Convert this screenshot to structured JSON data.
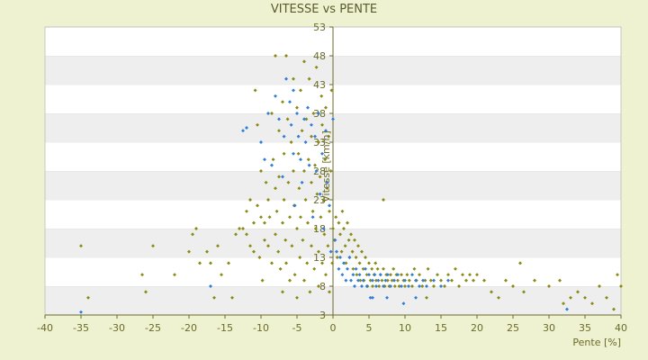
{
  "chart_data": {
    "type": "scatter",
    "title": "VITESSE vs PENTE",
    "xlabel": "Pente [%]",
    "ylabel": "Vitesse [km/h]",
    "xlim": [
      -40,
      40
    ],
    "ylim": [
      3,
      53
    ],
    "x_ticks": [
      -40,
      -35,
      -30,
      -25,
      -20,
      -15,
      -10,
      -5,
      0,
      5,
      10,
      15,
      20,
      25,
      30,
      35,
      40
    ],
    "y_ticks": [
      3,
      8,
      13,
      18,
      23,
      28,
      33,
      38,
      43,
      48,
      53
    ],
    "grid": "horizontal bands",
    "colors": {
      "background": "#eef2d0",
      "plot_band_light": "#ffffff",
      "plot_band_dark": "#eeeeee",
      "axis": "#6b6b2a",
      "series_a": "#8a8a14",
      "series_b": "#2e7dd6"
    },
    "series": [
      {
        "color": "#8a8a14",
        "points": [
          [
            -35,
            15
          ],
          [
            -34,
            6
          ],
          [
            -26.5,
            10
          ],
          [
            -26,
            7
          ],
          [
            -25,
            15
          ],
          [
            -22,
            10
          ],
          [
            -20,
            14
          ],
          [
            -19.5,
            17
          ],
          [
            -19,
            18
          ],
          [
            -18.5,
            12
          ],
          [
            -17.5,
            14
          ],
          [
            -17,
            12
          ],
          [
            -16.5,
            6
          ],
          [
            -16,
            15
          ],
          [
            -15.5,
            10
          ],
          [
            -14.5,
            12
          ],
          [
            -14,
            6
          ],
          [
            -13.5,
            17
          ],
          [
            -13,
            18
          ],
          [
            -12.5,
            18
          ],
          [
            -12,
            21
          ],
          [
            -12,
            17
          ],
          [
            -11.5,
            23
          ],
          [
            -11.5,
            15
          ],
          [
            -11,
            19
          ],
          [
            -11,
            14
          ],
          [
            -10.8,
            42
          ],
          [
            -10.5,
            36
          ],
          [
            -10.5,
            22
          ],
          [
            -10.2,
            13
          ],
          [
            -10,
            28
          ],
          [
            -10,
            20
          ],
          [
            -9.8,
            9
          ],
          [
            -9.5,
            19
          ],
          [
            -9.5,
            16
          ],
          [
            -9.3,
            26
          ],
          [
            -9,
            23
          ],
          [
            -9,
            15
          ],
          [
            -8.8,
            20
          ],
          [
            -8.5,
            12
          ],
          [
            -8.5,
            38
          ],
          [
            -8.3,
            30
          ],
          [
            -8,
            25
          ],
          [
            -8,
            17
          ],
          [
            -8,
            48
          ],
          [
            -7.8,
            21
          ],
          [
            -7.6,
            14
          ],
          [
            -7.5,
            35
          ],
          [
            -7.5,
            27
          ],
          [
            -7.3,
            11
          ],
          [
            -7,
            40
          ],
          [
            -7,
            19
          ],
          [
            -7,
            7
          ],
          [
            -6.8,
            31
          ],
          [
            -6.8,
            23
          ],
          [
            -6.6,
            16
          ],
          [
            -6.5,
            48
          ],
          [
            -6.5,
            12
          ],
          [
            -6.3,
            37
          ],
          [
            -6.2,
            26
          ],
          [
            -6,
            20
          ],
          [
            -6,
            9
          ],
          [
            -5.8,
            33
          ],
          [
            -5.7,
            15
          ],
          [
            -5.5,
            44
          ],
          [
            -5.5,
            28
          ],
          [
            -5.4,
            22
          ],
          [
            -5.3,
            10
          ],
          [
            -5,
            39
          ],
          [
            -5,
            18
          ],
          [
            -5,
            6
          ],
          [
            -4.8,
            31
          ],
          [
            -4.7,
            25
          ],
          [
            -4.6,
            13
          ],
          [
            -4.5,
            42
          ],
          [
            -4.5,
            20
          ],
          [
            -4.3,
            35
          ],
          [
            -4.2,
            16
          ],
          [
            -4,
            47
          ],
          [
            -4,
            28
          ],
          [
            -4,
            9
          ],
          [
            -3.8,
            23
          ],
          [
            -3.7,
            37
          ],
          [
            -3.6,
            12
          ],
          [
            -3.5,
            19
          ],
          [
            -3.4,
            30
          ],
          [
            -3.3,
            44
          ],
          [
            -3.2,
            7
          ],
          [
            -3,
            34
          ],
          [
            -3,
            26
          ],
          [
            -3,
            15
          ],
          [
            -2.8,
            21
          ],
          [
            -2.7,
            38
          ],
          [
            -2.6,
            11
          ],
          [
            -2.5,
            29
          ],
          [
            -2.4,
            18
          ],
          [
            -2.3,
            46
          ],
          [
            -2.2,
            24
          ],
          [
            -2,
            33
          ],
          [
            -2,
            14
          ],
          [
            -2,
            8
          ],
          [
            -1.8,
            27
          ],
          [
            -1.7,
            20
          ],
          [
            -1.6,
            41
          ],
          [
            -1.5,
            36
          ],
          [
            -1.5,
            12
          ],
          [
            -1.3,
            23
          ],
          [
            -1.2,
            17
          ],
          [
            -1.1,
            30
          ],
          [
            -1,
            39
          ],
          [
            -1,
            10
          ],
          [
            -0.8,
            25
          ],
          [
            -0.7,
            15
          ],
          [
            -0.6,
            34
          ],
          [
            -0.5,
            21
          ],
          [
            -0.5,
            7
          ],
          [
            -0.3,
            28
          ],
          [
            -0.2,
            42
          ],
          [
            -0.1,
            12
          ],
          [
            0,
            18
          ],
          [
            0.2,
            16
          ],
          [
            0.4,
            20
          ],
          [
            0.6,
            13
          ],
          [
            0.8,
            19
          ],
          [
            1,
            17
          ],
          [
            1.2,
            14
          ],
          [
            1.3,
            21
          ],
          [
            1.5,
            18
          ],
          [
            1.7,
            15
          ],
          [
            1.8,
            12
          ],
          [
            2,
            19
          ],
          [
            2.2,
            16
          ],
          [
            2.3,
            13
          ],
          [
            2.5,
            17
          ],
          [
            2.7,
            14
          ],
          [
            2.8,
            11
          ],
          [
            3,
            16
          ],
          [
            3.2,
            13
          ],
          [
            3.3,
            10
          ],
          [
            3.5,
            15
          ],
          [
            3.7,
            12
          ],
          [
            3.8,
            9
          ],
          [
            4,
            14
          ],
          [
            4.2,
            11
          ],
          [
            4.3,
            9
          ],
          [
            4.5,
            13
          ],
          [
            4.7,
            10
          ],
          [
            4.8,
            8
          ],
          [
            5,
            12
          ],
          [
            5.2,
            9
          ],
          [
            5.4,
            11
          ],
          [
            5.5,
            8
          ],
          [
            5.7,
            10
          ],
          [
            5.9,
            12
          ],
          [
            6,
            9
          ],
          [
            6.2,
            11
          ],
          [
            6.4,
            8
          ],
          [
            6.6,
            10
          ],
          [
            6.8,
            9
          ],
          [
            7,
            23
          ],
          [
            7,
            11
          ],
          [
            7.2,
            8
          ],
          [
            7.4,
            10
          ],
          [
            7.6,
            9
          ],
          [
            7.8,
            8
          ],
          [
            8,
            10
          ],
          [
            8.2,
            9
          ],
          [
            8.4,
            11
          ],
          [
            8.6,
            8
          ],
          [
            8.8,
            10
          ],
          [
            9,
            9
          ],
          [
            9.2,
            8
          ],
          [
            9.5,
            10
          ],
          [
            9.8,
            9
          ],
          [
            10,
            8
          ],
          [
            10.3,
            10
          ],
          [
            10.6,
            9
          ],
          [
            11,
            8
          ],
          [
            11.3,
            11
          ],
          [
            11.6,
            9
          ],
          [
            12,
            10
          ],
          [
            12.4,
            8
          ],
          [
            12.8,
            9
          ],
          [
            13,
            6
          ],
          [
            13.2,
            11
          ],
          [
            13.6,
            9
          ],
          [
            14,
            8
          ],
          [
            14.5,
            10
          ],
          [
            15,
            9
          ],
          [
            15.5,
            8
          ],
          [
            16,
            10
          ],
          [
            16.5,
            9
          ],
          [
            17,
            11
          ],
          [
            17.5,
            8
          ],
          [
            18,
            10
          ],
          [
            18.5,
            9
          ],
          [
            19,
            10
          ],
          [
            19.5,
            9
          ],
          [
            20,
            10
          ],
          [
            21,
            9
          ],
          [
            22,
            7
          ],
          [
            23,
            6
          ],
          [
            24,
            9
          ],
          [
            25,
            8
          ],
          [
            26,
            12
          ],
          [
            26.5,
            7
          ],
          [
            28,
            9
          ],
          [
            30,
            8
          ],
          [
            31.5,
            9
          ],
          [
            32,
            5
          ],
          [
            33,
            6
          ],
          [
            34,
            7
          ],
          [
            35,
            6
          ],
          [
            36,
            5
          ],
          [
            37,
            8
          ],
          [
            38,
            6
          ],
          [
            39,
            4
          ],
          [
            39.5,
            10
          ],
          [
            40,
            8
          ]
        ]
      },
      {
        "color": "#2e7dd6",
        "points": [
          [
            -35,
            3.5
          ],
          [
            -17,
            8
          ],
          [
            -12.5,
            35
          ],
          [
            -12,
            35.5
          ],
          [
            -10,
            33
          ],
          [
            -9.5,
            30
          ],
          [
            -9,
            38
          ],
          [
            -8.5,
            29
          ],
          [
            -8,
            41
          ],
          [
            -7.5,
            37
          ],
          [
            -7,
            27
          ],
          [
            -6.8,
            34
          ],
          [
            -6.5,
            44
          ],
          [
            -6,
            40
          ],
          [
            -5.8,
            36
          ],
          [
            -5.5,
            42
          ],
          [
            -5.5,
            31
          ],
          [
            -5.3,
            22
          ],
          [
            -5,
            38
          ],
          [
            -4.8,
            34
          ],
          [
            -4.5,
            30
          ],
          [
            -4.3,
            26
          ],
          [
            -4,
            37
          ],
          [
            -3.8,
            33
          ],
          [
            -3.5,
            39
          ],
          [
            -3.3,
            29
          ],
          [
            -3,
            36
          ],
          [
            -2.8,
            20
          ],
          [
            -2.5,
            34
          ],
          [
            -2.3,
            28
          ],
          [
            -2,
            38
          ],
          [
            -1.8,
            24
          ],
          [
            -1.5,
            31
          ],
          [
            -1.3,
            18
          ],
          [
            -1,
            35
          ],
          [
            -0.8,
            26
          ],
          [
            -0.5,
            22
          ],
          [
            -0.3,
            14
          ],
          [
            0,
            37
          ],
          [
            0.3,
            16
          ],
          [
            0.5,
            14
          ],
          [
            0.8,
            11
          ],
          [
            1,
            13
          ],
          [
            1.3,
            10
          ],
          [
            1.5,
            12
          ],
          [
            1.8,
            9
          ],
          [
            2,
            11
          ],
          [
            2.3,
            13
          ],
          [
            2.5,
            9
          ],
          [
            2.8,
            10
          ],
          [
            3,
            8
          ],
          [
            3.2,
            11
          ],
          [
            3.5,
            9
          ],
          [
            3.7,
            10
          ],
          [
            4,
            8
          ],
          [
            4.2,
            9
          ],
          [
            4.5,
            11
          ],
          [
            4.7,
            8
          ],
          [
            5,
            10
          ],
          [
            5.2,
            6
          ],
          [
            5.5,
            9
          ],
          [
            5.8,
            10
          ],
          [
            6,
            8
          ],
          [
            6.3,
            9
          ],
          [
            6.6,
            10
          ],
          [
            7,
            8
          ],
          [
            7.3,
            9
          ],
          [
            7.6,
            10
          ],
          [
            8,
            8
          ],
          [
            8.5,
            9
          ],
          [
            9,
            10
          ],
          [
            9.5,
            8
          ],
          [
            10,
            9
          ],
          [
            10.5,
            8
          ],
          [
            11,
            10
          ],
          [
            11.5,
            9
          ],
          [
            12,
            8
          ],
          [
            12.5,
            9
          ],
          [
            13,
            8
          ],
          [
            14,
            9
          ],
          [
            15,
            8
          ],
          [
            16,
            9
          ],
          [
            5.5,
            6
          ],
          [
            7.5,
            6
          ],
          [
            9.8,
            5
          ],
          [
            11.5,
            6
          ],
          [
            32.5,
            4
          ]
        ]
      }
    ]
  }
}
